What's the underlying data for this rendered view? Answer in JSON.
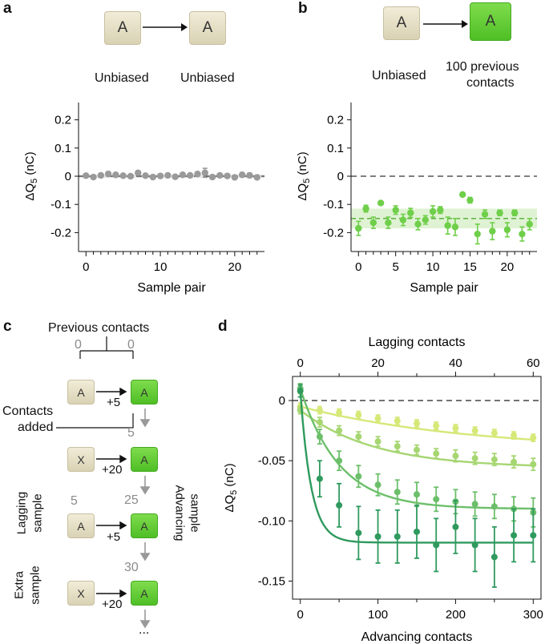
{
  "panel_a": {
    "letter": "a",
    "cube_left": "A",
    "cube_right": "A",
    "label_left": "Unbiased",
    "label_right": "Unbiased"
  },
  "panel_b": {
    "letter": "b",
    "cube_left": "A",
    "cube_right": "A",
    "label_left": "Unbiased",
    "label_right_line1": "100 previous",
    "label_right_line2": "contacts"
  },
  "panel_c": {
    "letter": "c",
    "previous_contacts": "Previous contacts",
    "count_left": "0",
    "count_right": "0",
    "contacts_added_line1": "Contacts",
    "contacts_added_line2": "added",
    "steps": [
      {
        "left_cube": "A",
        "right_cube": "A",
        "added": "+5",
        "right_count": "5"
      },
      {
        "left_cube": "X",
        "right_cube": "A",
        "added": "+20",
        "right_count": "25"
      },
      {
        "left_cube": "A",
        "right_cube": "A",
        "added": "+5",
        "right_count": "30"
      },
      {
        "left_cube": "X",
        "right_cube": "A",
        "added": "+20",
        "right_count": ""
      }
    ],
    "lagging_count": "5",
    "lagging_label_line1": "Lagging",
    "lagging_label_line2": "sample",
    "advancing_label_line1": "Advancing",
    "advancing_label_line2": "sample",
    "extra_label_line1": "Extra",
    "extra_label_line2": "sample",
    "ellipsis": "..."
  },
  "colors": {
    "gray_points": "#9a9a9a",
    "green_points": "#6fcf4a",
    "green_band": "#dff2d3",
    "series": [
      "#d6e878",
      "#a6d672",
      "#6cbf6a",
      "#2f9a5e"
    ]
  },
  "chart_data": [
    {
      "id": "a",
      "type": "scatter",
      "title": "",
      "xlabel": "Sample pair",
      "ylabel": "ΔQ₅ (nC)",
      "ylabel_main": "ΔQ",
      "ylabel_sub": "5",
      "ylabel_unit": " (nC)",
      "xlim": [
        -1,
        24
      ],
      "ylim": [
        -0.25,
        0.25
      ],
      "xticks": [
        0,
        10,
        20
      ],
      "xtick_labels": [
        "0",
        "10",
        "20"
      ],
      "yticks": [
        0.2,
        0.1,
        0,
        -0.1,
        -0.2
      ],
      "ytick_labels": [
        "0.2",
        "0.1",
        "0",
        "-0.1",
        "-0.2"
      ],
      "reference_line": 0,
      "x": [
        0,
        1,
        2,
        3,
        4,
        5,
        6,
        7,
        8,
        9,
        10,
        11,
        12,
        13,
        14,
        15,
        16,
        17,
        18,
        19,
        20,
        21,
        22,
        23
      ],
      "y": [
        0.002,
        -0.003,
        0.003,
        0.008,
        0.005,
        0.002,
        0.0,
        0.012,
        0.002,
        -0.003,
        0.001,
        0.003,
        -0.002,
        0.005,
        0.003,
        0.008,
        0.012,
        -0.003,
        0.003,
        0.001,
        -0.004,
        0.005,
        0.003,
        -0.004
      ],
      "err": [
        0.005,
        0.005,
        0.007,
        0.008,
        0.006,
        0.005,
        0.005,
        0.007,
        0.006,
        0.005,
        0.005,
        0.005,
        0.005,
        0.006,
        0.005,
        0.006,
        0.016,
        0.006,
        0.006,
        0.005,
        0.005,
        0.006,
        0.008,
        0.006
      ]
    },
    {
      "id": "b",
      "type": "scatter",
      "title": "",
      "xlabel": "Sample pair",
      "ylabel": "ΔQ₅ (nC)",
      "ylabel_main": "ΔQ",
      "ylabel_sub": "5",
      "ylabel_unit": " (nC)",
      "xlim": [
        -1,
        24
      ],
      "ylim": [
        -0.25,
        0.25
      ],
      "xticks": [
        0,
        5,
        10,
        15,
        20
      ],
      "xtick_labels": [
        "0",
        "5",
        "10",
        "15",
        "20"
      ],
      "yticks": [
        0.2,
        0.1,
        0,
        -0.1,
        -0.2
      ],
      "ytick_labels": [
        "0.2",
        "0.1",
        "0",
        "-0.1",
        "-0.2"
      ],
      "reference_line": 0,
      "mean_line": -0.15,
      "band": [
        -0.185,
        -0.115
      ],
      "x": [
        0,
        1,
        2,
        3,
        4,
        5,
        6,
        7,
        8,
        9,
        10,
        11,
        12,
        13,
        14,
        15,
        16,
        17,
        18,
        19,
        20,
        21,
        22,
        23
      ],
      "y": [
        -0.185,
        -0.115,
        -0.165,
        -0.095,
        -0.165,
        -0.12,
        -0.155,
        -0.13,
        -0.17,
        -0.155,
        -0.125,
        -0.12,
        -0.175,
        -0.18,
        -0.065,
        -0.085,
        -0.205,
        -0.135,
        -0.195,
        -0.13,
        -0.19,
        -0.13,
        -0.205,
        -0.17
      ],
      "err": [
        0.025,
        0.012,
        0.02,
        0.006,
        0.02,
        0.015,
        0.02,
        0.016,
        0.02,
        0.015,
        0.02,
        0.012,
        0.03,
        0.03,
        0.006,
        0.01,
        0.035,
        0.015,
        0.03,
        0.01,
        0.025,
        0.01,
        0.025,
        0.02
      ]
    },
    {
      "id": "d",
      "type": "scatter",
      "title": "",
      "xlabel": "Advancing contacts",
      "x2label": "Lagging contacts",
      "ylabel": "ΔQ₅ (nC)",
      "ylabel_main": "ΔQ",
      "ylabel_sub": "5",
      "ylabel_unit": " (nC)",
      "xlim": [
        -10,
        310
      ],
      "ylim": [
        -0.165,
        0.02
      ],
      "xticks": [
        0,
        100,
        200,
        300
      ],
      "xtick_labels": [
        "0",
        "100",
        "200",
        "300"
      ],
      "x2ticks": [
        0,
        20,
        40,
        60
      ],
      "x2tick_labels": [
        "0",
        "20",
        "40",
        "60"
      ],
      "yticks": [
        0,
        -0.05,
        -0.1,
        -0.15
      ],
      "ytick_labels": [
        "0",
        "-0.05",
        "-0.10",
        "-0.15"
      ],
      "reference_line": 0,
      "x": [
        0,
        25,
        50,
        75,
        100,
        125,
        150,
        175,
        200,
        225,
        250,
        275,
        300
      ],
      "series": [
        {
          "name": "series-1",
          "color": "#d6e878",
          "values": [
            -0.005,
            -0.008,
            -0.01,
            -0.012,
            -0.015,
            -0.017,
            -0.019,
            -0.021,
            -0.023,
            -0.025,
            -0.027,
            -0.029,
            -0.031
          ],
          "err": [
            0.003,
            0.003,
            0.003,
            0.003,
            0.003,
            0.003,
            0.003,
            0.003,
            0.003,
            0.003,
            0.003,
            0.003,
            0.003
          ],
          "fit": {
            "a": -0.042,
            "tau": 220
          }
        },
        {
          "name": "series-2",
          "color": "#a6d672",
          "values": [
            -0.008,
            -0.018,
            -0.025,
            -0.03,
            -0.034,
            -0.038,
            -0.041,
            -0.044,
            -0.046,
            -0.048,
            -0.049,
            -0.051,
            -0.053
          ],
          "err": [
            0.003,
            0.004,
            0.004,
            0.004,
            0.004,
            0.004,
            0.004,
            0.004,
            0.005,
            0.005,
            0.005,
            0.005,
            0.005
          ],
          "fit": {
            "a": -0.056,
            "tau": 95
          }
        },
        {
          "name": "series-3",
          "color": "#6cbf6a",
          "values": [
            0.01,
            -0.03,
            -0.05,
            -0.063,
            -0.07,
            -0.076,
            -0.078,
            -0.082,
            -0.084,
            -0.086,
            -0.088,
            -0.09,
            -0.093
          ],
          "err": [
            0.004,
            0.006,
            0.008,
            0.009,
            0.009,
            0.01,
            0.01,
            0.01,
            0.01,
            0.01,
            0.01,
            0.01,
            0.012
          ],
          "fit": {
            "a": -0.09,
            "tau": 50
          }
        },
        {
          "name": "series-4",
          "color": "#2f9a5e",
          "values": [
            0.008,
            -0.065,
            -0.087,
            -0.11,
            -0.113,
            -0.113,
            -0.109,
            -0.12,
            -0.105,
            -0.12,
            -0.13,
            -0.112,
            -0.112
          ],
          "err": [
            0.005,
            0.015,
            0.018,
            0.022,
            0.022,
            0.022,
            0.022,
            0.022,
            0.022,
            0.022,
            0.025,
            0.022,
            0.022
          ],
          "fit": {
            "a": -0.118,
            "tau": 14
          }
        }
      ]
    }
  ]
}
